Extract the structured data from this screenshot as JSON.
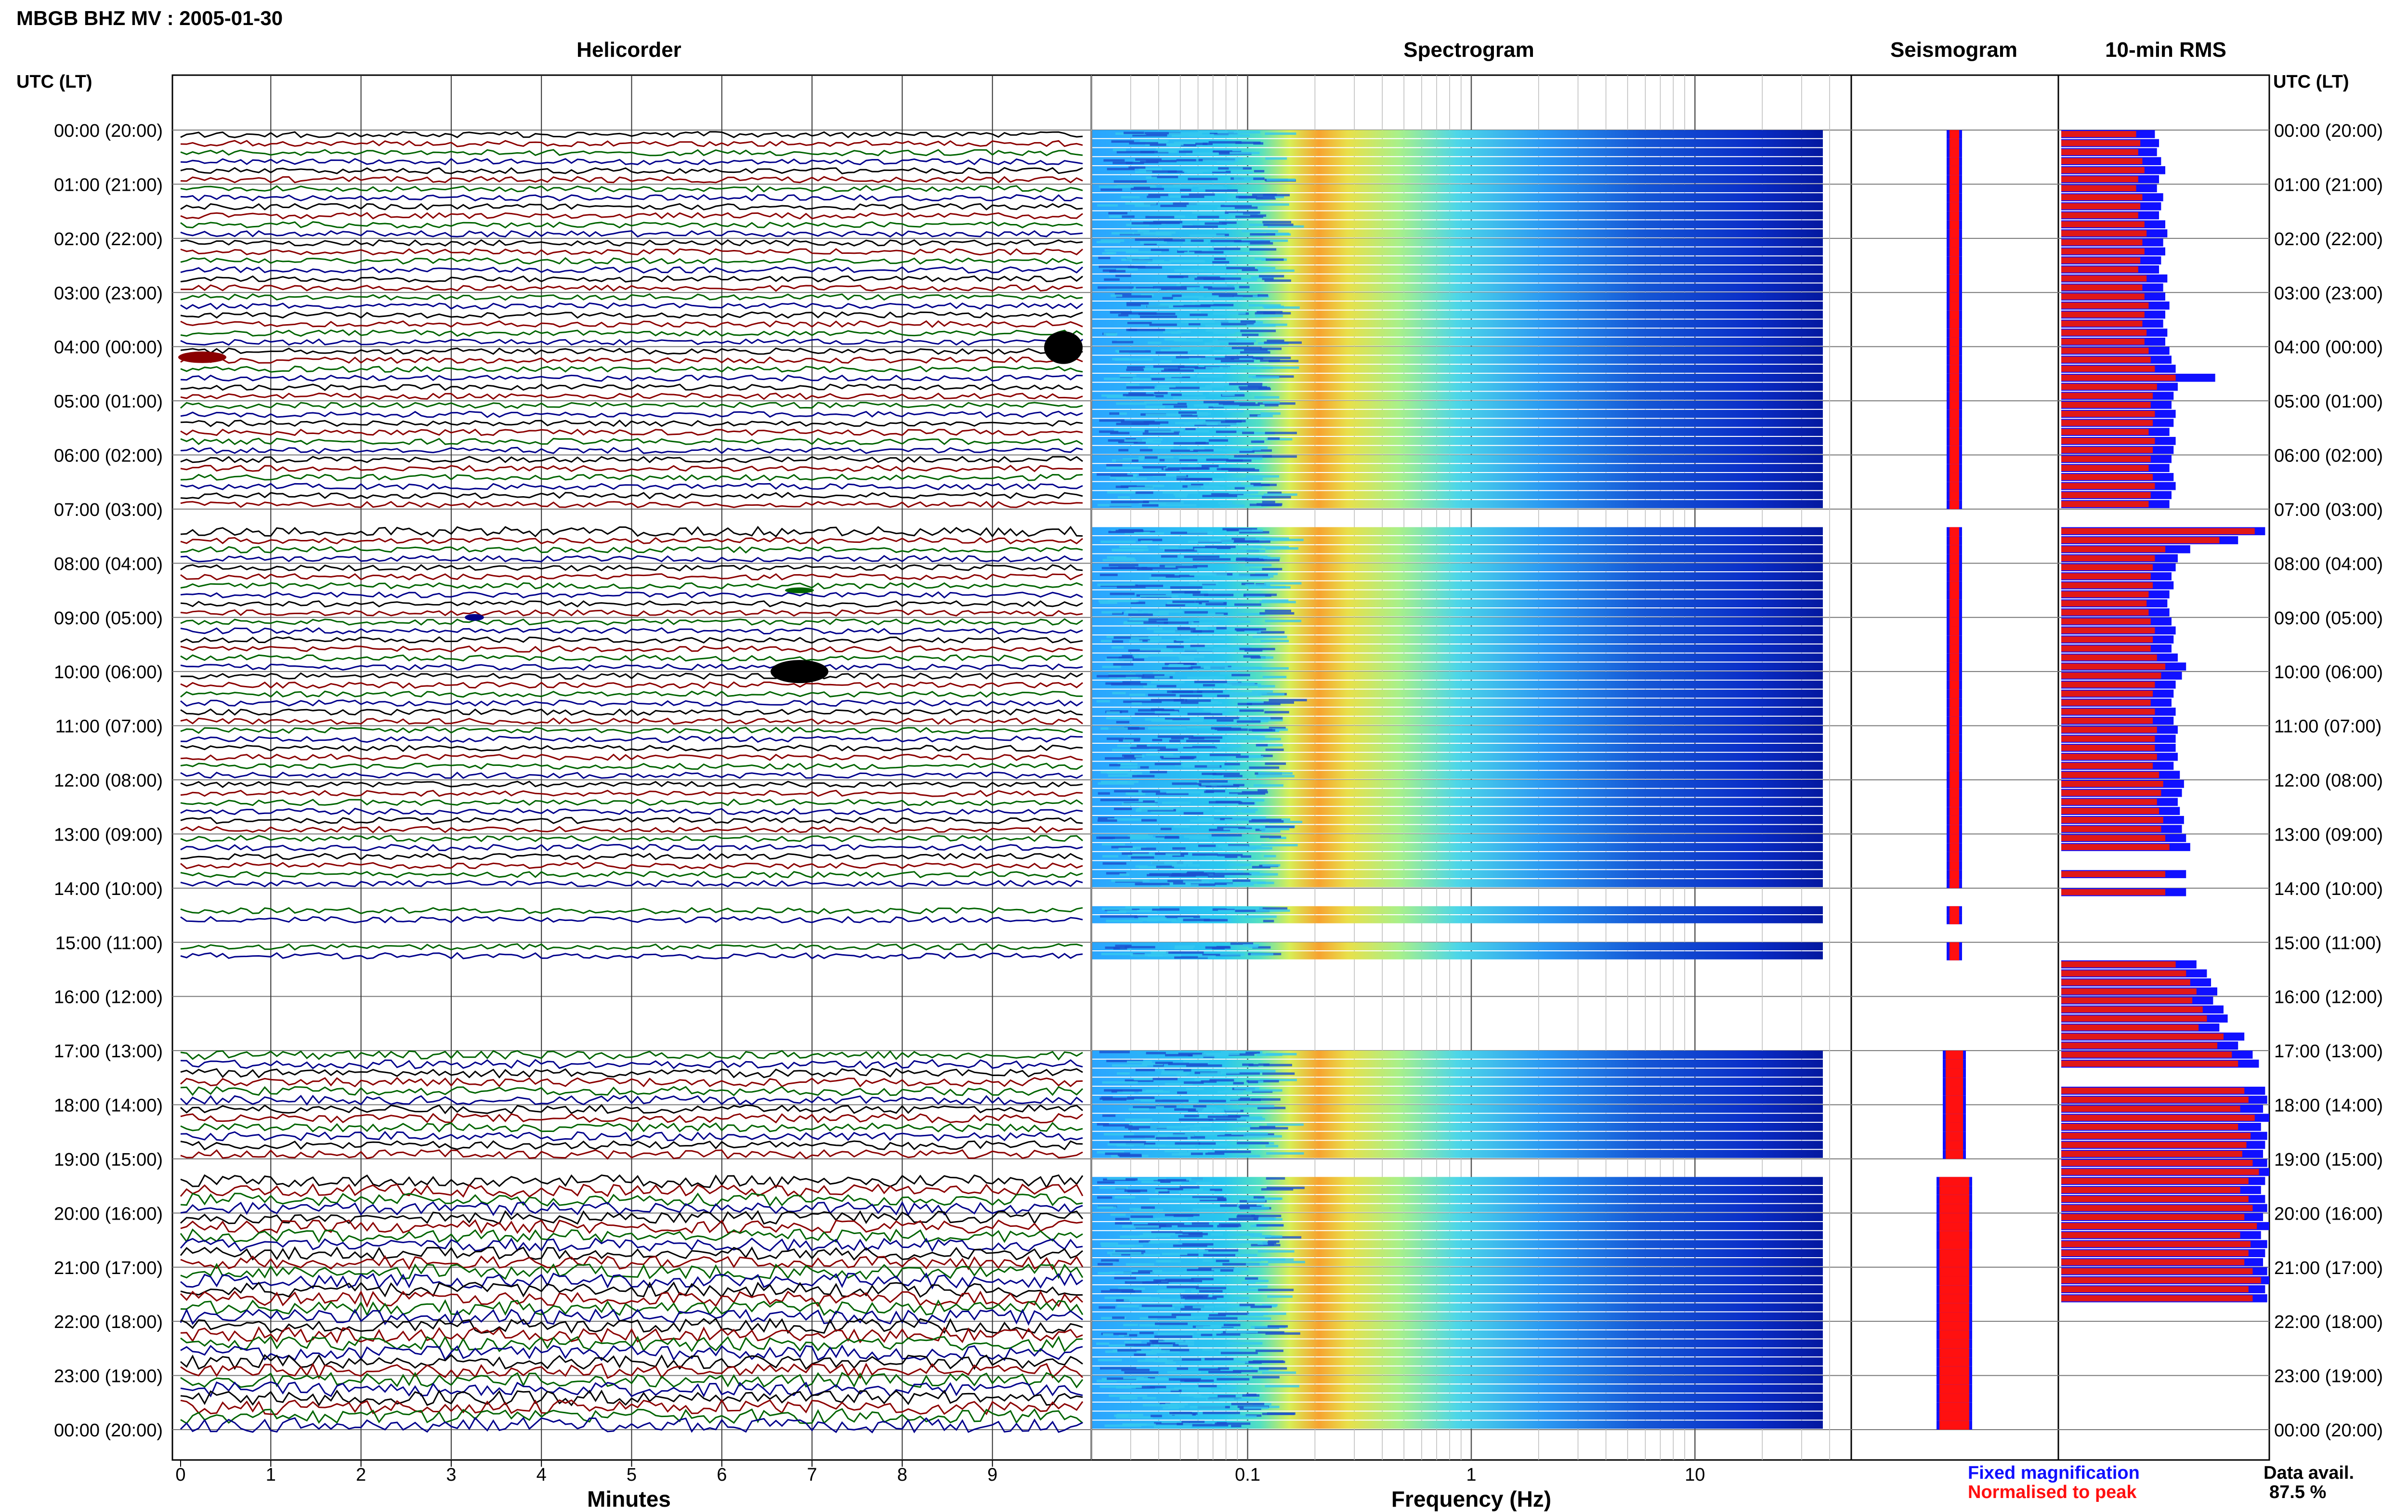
{
  "header": {
    "title": "MBGB BHZ MV : 2005-01-30"
  },
  "panels": {
    "helicorder": "Helicorder",
    "spectrogram": "Spectrogram",
    "seismogram": "Seismogram",
    "rms": "10-min RMS"
  },
  "axis": {
    "time_label_left": "UTC (LT)",
    "time_label_right": "UTC (LT)",
    "minutes_label": "Minutes",
    "frequency_label": "Frequency (Hz)"
  },
  "legend": {
    "fixed": "Fixed magnification",
    "normalised": "Normalised to peak",
    "fixed_color": "#1010ff",
    "normalised_color": "#ff1010"
  },
  "availability": {
    "label": "Data avail.",
    "value": "87.5 %"
  },
  "colors": {
    "trace_cycle": [
      "#000000",
      "#8b0000",
      "#006400",
      "#00008b"
    ],
    "rms_fixed": "#1010ff",
    "rms_normalised": "#e01818"
  },
  "chart_data": {
    "type": "heatmap",
    "time_ticks": [
      "00:00 (20:00)",
      "01:00 (21:00)",
      "02:00 (22:00)",
      "03:00 (23:00)",
      "04:00 (00:00)",
      "05:00 (01:00)",
      "06:00 (02:00)",
      "07:00 (03:00)",
      "08:00 (04:00)",
      "09:00 (05:00)",
      "10:00 (06:00)",
      "11:00 (07:00)",
      "12:00 (08:00)",
      "13:00 (09:00)",
      "14:00 (10:00)",
      "15:00 (11:00)",
      "16:00 (12:00)",
      "17:00 (13:00)",
      "18:00 (14:00)",
      "19:00 (15:00)",
      "20:00 (16:00)",
      "21:00 (17:00)",
      "22:00 (18:00)",
      "23:00 (19:00)",
      "00:00 (20:00)"
    ],
    "minutes_ticks": [
      "0",
      "1",
      "2",
      "3",
      "4",
      "5",
      "6",
      "7",
      "8",
      "9"
    ],
    "frequency_ticks": [
      "0.1",
      "1",
      "10"
    ],
    "frequency_range_hz": [
      0.02,
      50
    ],
    "frequency_scale": "log",
    "data_gaps_utc": [
      [
        "07:00",
        "07:20"
      ],
      [
        "14:00",
        "14:20"
      ],
      [
        "14:40",
        "15:00"
      ],
      [
        "15:20",
        "17:00"
      ],
      [
        "19:00",
        "19:20"
      ]
    ],
    "rms_10min": {
      "series": [
        {
          "name": "Fixed magnification",
          "values": [
            0.45,
            0.47,
            0.46,
            0.48,
            0.5,
            0.47,
            0.46,
            0.49,
            0.48,
            0.47,
            0.5,
            0.51,
            0.49,
            0.5,
            0.48,
            0.47,
            0.51,
            0.49,
            0.5,
            0.52,
            0.5,
            0.49,
            0.51,
            0.5,
            0.52,
            0.53,
            0.55,
            0.74,
            0.56,
            0.54,
            0.53,
            0.55,
            0.54,
            0.52,
            0.55,
            0.54,
            0.53,
            0.52,
            0.54,
            0.55,
            0.53,
            0.52,
            null,
            null,
            0.98,
            0.85,
            0.62,
            0.56,
            0.55,
            0.53,
            0.54,
            0.52,
            0.51,
            0.52,
            0.53,
            0.55,
            0.54,
            0.53,
            0.56,
            0.6,
            0.58,
            0.55,
            0.54,
            0.53,
            0.55,
            0.54,
            0.56,
            0.55,
            0.55,
            0.56,
            0.54,
            0.57,
            0.59,
            0.58,
            0.56,
            0.57,
            0.59,
            0.58,
            0.6,
            0.62,
            null,
            null,
            0.6,
            null,
            0.6,
            null,
            null,
            null,
            null,
            null,
            null,
            null,
            0.65,
            0.7,
            0.72,
            0.75,
            0.73,
            0.78,
            0.8,
            0.76,
            0.88,
            0.85,
            0.92,
            0.95,
            null,
            null,
            0.98,
            0.99,
            0.97,
            1.0,
            0.96,
            0.99,
            0.98,
            0.97,
            0.99,
            1.0,
            0.98,
            0.96,
            0.98,
            0.99,
            0.97,
            1.0,
            0.96,
            0.99,
            0.98,
            0.97,
            0.99,
            1.0,
            0.98,
            0.99
          ]
        },
        {
          "name": "Normalised to peak",
          "values": [
            0.36,
            0.38,
            0.37,
            0.39,
            0.4,
            0.37,
            0.36,
            0.39,
            0.38,
            0.37,
            0.4,
            0.41,
            0.39,
            0.4,
            0.38,
            0.37,
            0.41,
            0.39,
            0.4,
            0.42,
            0.4,
            0.39,
            0.41,
            0.4,
            0.42,
            0.43,
            0.45,
            0.55,
            0.46,
            0.44,
            0.43,
            0.45,
            0.44,
            0.42,
            0.45,
            0.44,
            0.43,
            0.42,
            0.44,
            0.45,
            0.43,
            0.42,
            null,
            null,
            0.93,
            0.76,
            0.5,
            0.45,
            0.44,
            0.43,
            0.44,
            0.42,
            0.41,
            0.42,
            0.43,
            0.45,
            0.44,
            0.43,
            0.46,
            0.5,
            0.48,
            0.45,
            0.44,
            0.43,
            0.45,
            0.44,
            0.46,
            0.45,
            0.45,
            0.46,
            0.44,
            0.47,
            0.49,
            0.48,
            0.46,
            0.47,
            0.49,
            0.48,
            0.5,
            0.52,
            null,
            null,
            0.5,
            null,
            0.5,
            null,
            null,
            null,
            null,
            null,
            null,
            null,
            0.55,
            0.6,
            0.62,
            0.65,
            0.63,
            0.68,
            0.7,
            0.66,
            0.78,
            0.75,
            0.82,
            0.85,
            null,
            null,
            0.88,
            0.9,
            0.86,
            0.93,
            0.85,
            0.91,
            0.89,
            0.87,
            0.92,
            0.95,
            0.9,
            0.86,
            0.9,
            0.92,
            0.88,
            0.94,
            0.86,
            0.91,
            0.9,
            0.88,
            0.92,
            0.96,
            0.9,
            0.92
          ]
        }
      ]
    }
  }
}
